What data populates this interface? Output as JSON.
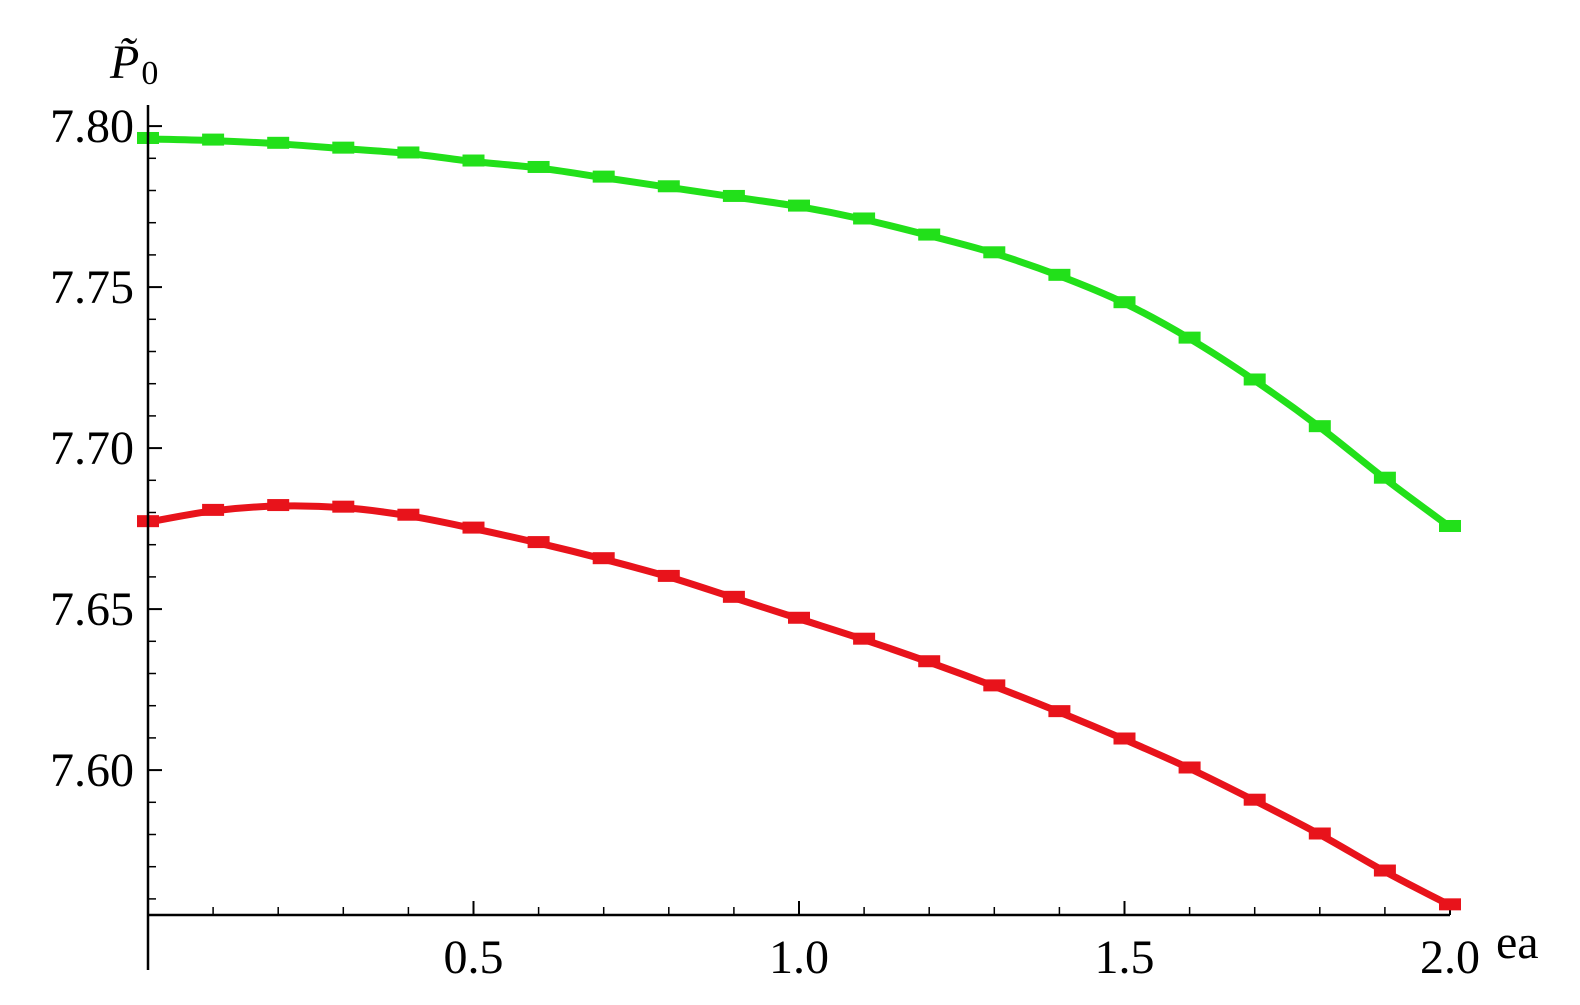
{
  "chart_data": {
    "type": "line",
    "title": "",
    "xlabel": "ea",
    "ylabel": "P̃0",
    "ylabel_parts": {
      "symbol": "P̃",
      "subscript": "0"
    },
    "xlim": [
      0,
      2.0
    ],
    "ylim": [
      7.555,
      7.805
    ],
    "x_ticks": [
      0.5,
      1.0,
      1.5,
      2.0
    ],
    "x_tick_labels": [
      "0.5",
      "1.0",
      "1.5",
      "2.0"
    ],
    "y_ticks": [
      7.6,
      7.65,
      7.7,
      7.75,
      7.8
    ],
    "y_tick_labels": [
      "7.60",
      "7.65",
      "7.70",
      "7.75",
      "7.80"
    ],
    "grid": false,
    "legend": "none",
    "series": [
      {
        "color": "#22e01a",
        "x": [
          0.0,
          0.1,
          0.2,
          0.3,
          0.4,
          0.5,
          0.6,
          0.7,
          0.8,
          0.9,
          1.0,
          1.1,
          1.2,
          1.3,
          1.4,
          1.5,
          1.6,
          1.7,
          1.8,
          1.9,
          2.0
        ],
        "y": [
          7.796,
          7.7955,
          7.7945,
          7.793,
          7.7915,
          7.789,
          7.787,
          7.784,
          7.781,
          7.778,
          7.775,
          7.771,
          7.766,
          7.7605,
          7.7535,
          7.745,
          7.734,
          7.721,
          7.7065,
          7.6905,
          7.6755
        ]
      },
      {
        "color": "#e8131b",
        "x": [
          0.0,
          0.1,
          0.2,
          0.3,
          0.4,
          0.5,
          0.6,
          0.7,
          0.8,
          0.9,
          1.0,
          1.1,
          1.2,
          1.3,
          1.4,
          1.5,
          1.6,
          1.7,
          1.8,
          1.9,
          2.0
        ],
        "y": [
          7.677,
          7.6805,
          7.682,
          7.6815,
          7.679,
          7.675,
          7.6705,
          7.6655,
          7.66,
          7.6535,
          7.647,
          7.6405,
          7.6335,
          7.626,
          7.618,
          7.6095,
          7.6005,
          7.5905,
          7.58,
          7.5685,
          7.558
        ]
      }
    ]
  }
}
